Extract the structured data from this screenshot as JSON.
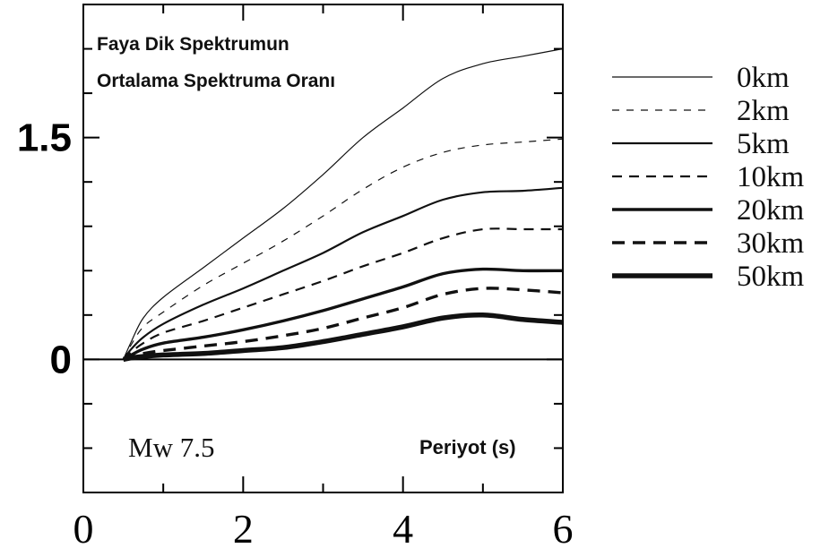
{
  "chart_data": {
    "type": "line",
    "title_lines": [
      "Faya Dik Spektrumun",
      "Ortalama Spektruma Oranı"
    ],
    "xlabel": "Periyot (s)",
    "ylabel": "",
    "annotation": "Mw 7.5",
    "xlim": [
      0,
      6
    ],
    "ylim": [
      -0.9,
      2.4
    ],
    "x_ticks": [
      0,
      2,
      4,
      6
    ],
    "x_minor_ticks": [
      1,
      3,
      5
    ],
    "y_ticks": [
      0,
      1.5
    ],
    "y_tick_labels": [
      "0",
      "1.5"
    ],
    "y_minor_ticks": [
      -0.6,
      -0.3,
      0.3,
      0.6,
      0.9,
      1.2,
      1.8,
      2.1
    ],
    "series": [
      {
        "name": "0km",
        "style": {
          "width": 1.2,
          "dash": "none"
        },
        "x": [
          0.5,
          0.6,
          0.75,
          1.0,
          1.5,
          2.0,
          2.5,
          3.0,
          3.5,
          4.0,
          4.5,
          5.0,
          5.5,
          6.0
        ],
        "y": [
          0,
          0.12,
          0.28,
          0.42,
          0.62,
          0.82,
          1.02,
          1.25,
          1.5,
          1.7,
          1.9,
          2.0,
          2.05,
          2.1
        ]
      },
      {
        "name": "2km",
        "style": {
          "width": 1.2,
          "dash": "8,8"
        },
        "x": [
          0.5,
          0.6,
          0.75,
          1.0,
          1.5,
          2.0,
          2.5,
          3.0,
          3.5,
          4.0,
          4.5,
          5.0,
          5.5,
          6.0
        ],
        "y": [
          0,
          0.1,
          0.22,
          0.32,
          0.5,
          0.65,
          0.8,
          0.97,
          1.15,
          1.3,
          1.4,
          1.45,
          1.47,
          1.49
        ]
      },
      {
        "name": "5km",
        "style": {
          "width": 2.2,
          "dash": "none"
        },
        "x": [
          0.5,
          0.6,
          0.75,
          1.0,
          1.5,
          2.0,
          2.5,
          3.0,
          3.5,
          4.0,
          4.5,
          5.0,
          5.5,
          6.0
        ],
        "y": [
          0,
          0.07,
          0.15,
          0.24,
          0.37,
          0.48,
          0.6,
          0.72,
          0.86,
          0.97,
          1.08,
          1.13,
          1.14,
          1.16
        ]
      },
      {
        "name": "10km",
        "style": {
          "width": 2.2,
          "dash": "11,8"
        },
        "x": [
          0.5,
          0.6,
          0.75,
          1.0,
          1.5,
          2.0,
          2.5,
          3.0,
          3.5,
          4.0,
          4.5,
          5.0,
          5.5,
          6.0
        ],
        "y": [
          0,
          0.05,
          0.11,
          0.18,
          0.26,
          0.35,
          0.44,
          0.53,
          0.63,
          0.72,
          0.82,
          0.88,
          0.88,
          0.88
        ]
      },
      {
        "name": "20km",
        "style": {
          "width": 3.4,
          "dash": "none"
        },
        "x": [
          0.5,
          0.6,
          0.75,
          1.0,
          1.5,
          2.0,
          2.5,
          3.0,
          3.5,
          4.0,
          4.5,
          5.0,
          5.5,
          6.0
        ],
        "y": [
          0,
          0.03,
          0.07,
          0.11,
          0.15,
          0.2,
          0.26,
          0.33,
          0.41,
          0.49,
          0.58,
          0.61,
          0.6,
          0.6
        ]
      },
      {
        "name": "30km",
        "style": {
          "width": 3.4,
          "dash": "14,9"
        },
        "x": [
          0.5,
          0.6,
          0.75,
          1.0,
          1.5,
          2.0,
          2.5,
          3.0,
          3.5,
          4.0,
          4.5,
          5.0,
          5.5,
          6.0
        ],
        "y": [
          0,
          0.02,
          0.04,
          0.06,
          0.09,
          0.12,
          0.16,
          0.21,
          0.28,
          0.35,
          0.44,
          0.48,
          0.47,
          0.45
        ]
      },
      {
        "name": "50km",
        "style": {
          "width": 5.5,
          "dash": "none"
        },
        "x": [
          0.5,
          0.6,
          0.75,
          1.0,
          1.5,
          2.0,
          2.5,
          3.0,
          3.5,
          4.0,
          4.5,
          5.0,
          5.5,
          6.0
        ],
        "y": [
          0,
          0.01,
          0.02,
          0.03,
          0.04,
          0.06,
          0.08,
          0.12,
          0.17,
          0.22,
          0.28,
          0.3,
          0.27,
          0.25
        ]
      }
    ]
  }
}
